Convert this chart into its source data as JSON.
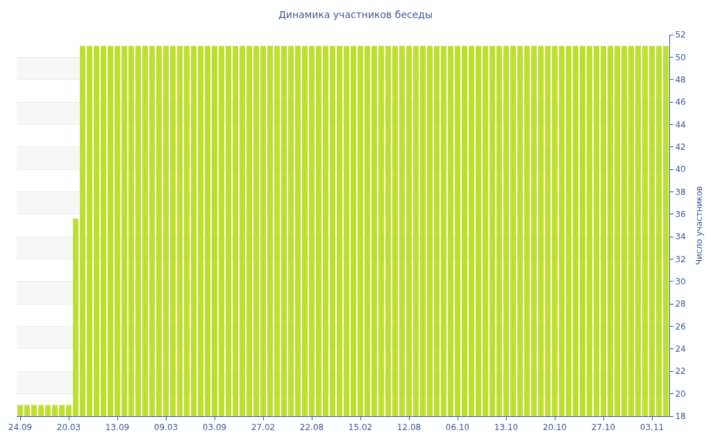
{
  "chart_data": {
    "type": "bar",
    "title": "Динамика участников беседы",
    "ylabel": "Число участников",
    "categories": [
      "24.09",
      null,
      null,
      null,
      null,
      null,
      null,
      "20.03",
      null,
      null,
      null,
      null,
      null,
      null,
      "13.09",
      null,
      null,
      null,
      null,
      null,
      null,
      "09.03",
      null,
      null,
      null,
      null,
      null,
      null,
      "03.09",
      null,
      null,
      null,
      null,
      null,
      null,
      "27.02",
      null,
      null,
      null,
      null,
      null,
      null,
      "22.08",
      null,
      null,
      null,
      null,
      null,
      null,
      "15.02",
      null,
      null,
      null,
      null,
      null,
      null,
      "12.08",
      null,
      null,
      null,
      null,
      null,
      null,
      "06.10",
      null,
      null,
      null,
      null,
      null,
      null,
      "13.10",
      null,
      null,
      null,
      null,
      null,
      null,
      "20.10",
      null,
      null,
      null,
      null,
      null,
      null,
      "27.10",
      null,
      null,
      null,
      null,
      null,
      null,
      "03.11",
      null,
      null
    ],
    "values": [
      19,
      19,
      19,
      19,
      19,
      19,
      19,
      19,
      35.6,
      51,
      51,
      51,
      51,
      51,
      51,
      51,
      51,
      51,
      51,
      51,
      51,
      51,
      51,
      51,
      51,
      51,
      51,
      51,
      51,
      51,
      51,
      51,
      51,
      51,
      51,
      51,
      51,
      51,
      51,
      51,
      51,
      51,
      51,
      51,
      51,
      51,
      51,
      51,
      51,
      51,
      51,
      51,
      51,
      51,
      51,
      51,
      51,
      51,
      51,
      51,
      51,
      51,
      51,
      51,
      51,
      51,
      51,
      51,
      51,
      51,
      51,
      51,
      51,
      51,
      51,
      51,
      51,
      51,
      51,
      51,
      51,
      51,
      51,
      51,
      51,
      51,
      51,
      51,
      51,
      51,
      51,
      51,
      51,
      51
    ],
    "color": "#bde02e",
    "ylim": [
      18,
      52
    ],
    "yticks": [
      18,
      20,
      22,
      24,
      26,
      28,
      30,
      32,
      34,
      36,
      38,
      40,
      42,
      44,
      46,
      48,
      50,
      52
    ],
    "grid": "y"
  }
}
